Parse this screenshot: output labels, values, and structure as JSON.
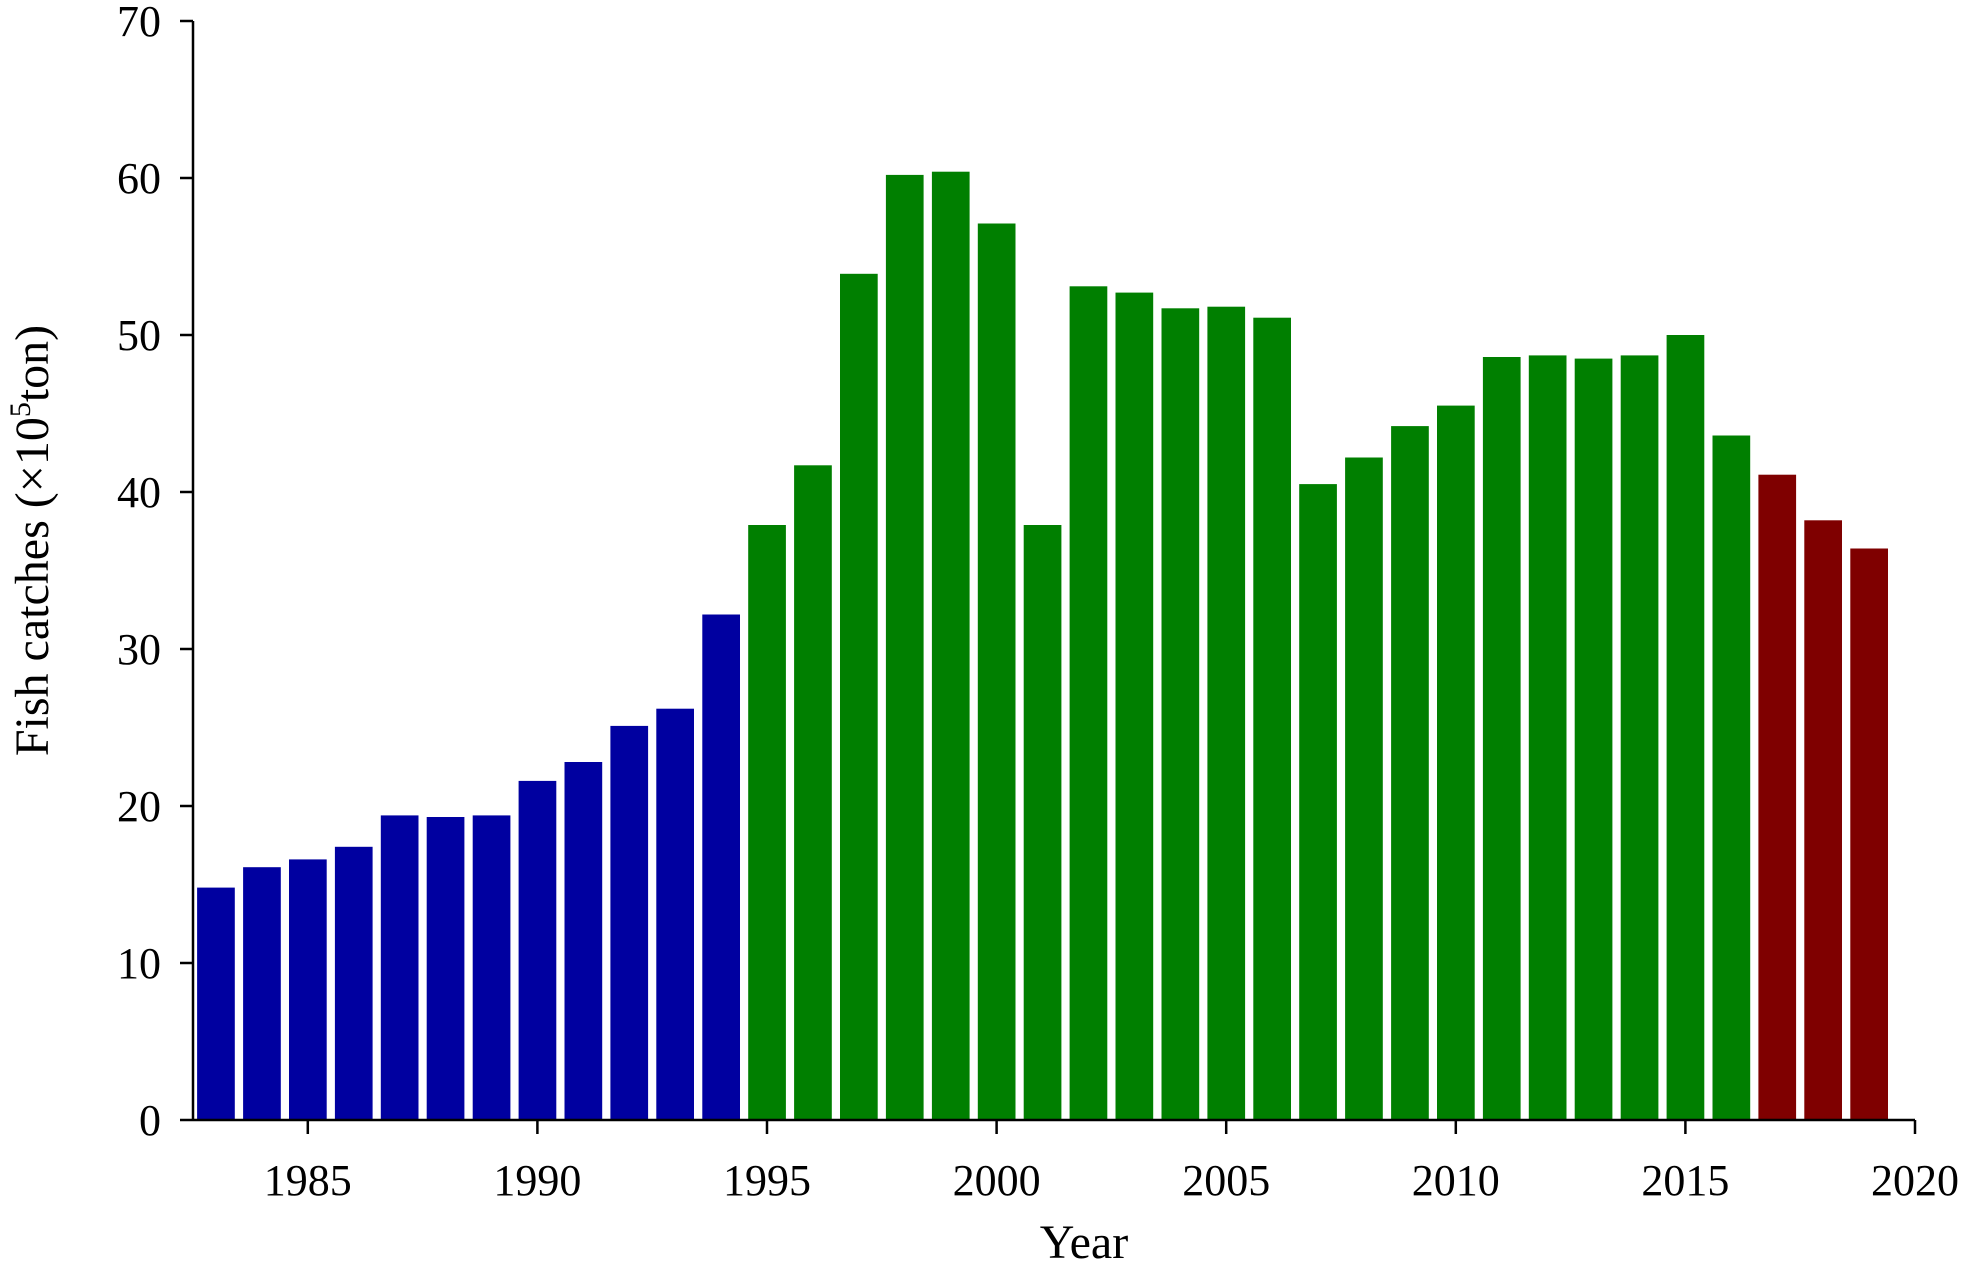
{
  "chart_data": {
    "type": "bar",
    "xlabel": "Year",
    "ylabel_parts": {
      "before": "Fish catches (×10",
      "superscript": "5",
      "after": "ton)"
    },
    "xlim": [
      1982.5,
      2020
    ],
    "ylim": [
      0,
      70
    ],
    "x_ticks": [
      1985,
      1990,
      1995,
      2000,
      2005,
      2010,
      2015,
      2020
    ],
    "y_ticks": [
      0,
      10,
      20,
      30,
      40,
      50,
      60,
      70
    ],
    "grid": false,
    "legend": "none",
    "groups": [
      {
        "color": "#0000A0",
        "x": [
          1983,
          1984,
          1985,
          1986,
          1987,
          1988,
          1989,
          1990,
          1991,
          1992,
          1993,
          1994
        ],
        "values": [
          14.8,
          16.1,
          16.6,
          17.4,
          19.4,
          19.3,
          19.4,
          21.6,
          22.8,
          25.1,
          26.2,
          32.2
        ]
      },
      {
        "color": "#007F00",
        "x": [
          1995,
          1996,
          1997,
          1998,
          1999,
          2000,
          2001,
          2002,
          2003,
          2004,
          2005,
          2006,
          2007,
          2008,
          2009,
          2010,
          2011,
          2012,
          2013,
          2014,
          2015,
          2016
        ],
        "values": [
          37.9,
          41.7,
          53.9,
          60.2,
          60.4,
          57.1,
          37.9,
          53.1,
          52.7,
          51.7,
          51.8,
          51.1,
          40.5,
          42.2,
          44.2,
          45.5,
          48.6,
          48.7,
          48.5,
          48.7,
          50.0,
          43.6
        ]
      },
      {
        "color": "#7F0000",
        "x": [
          2017,
          2018,
          2019
        ],
        "values": [
          41.1,
          38.2,
          36.4
        ]
      }
    ]
  }
}
